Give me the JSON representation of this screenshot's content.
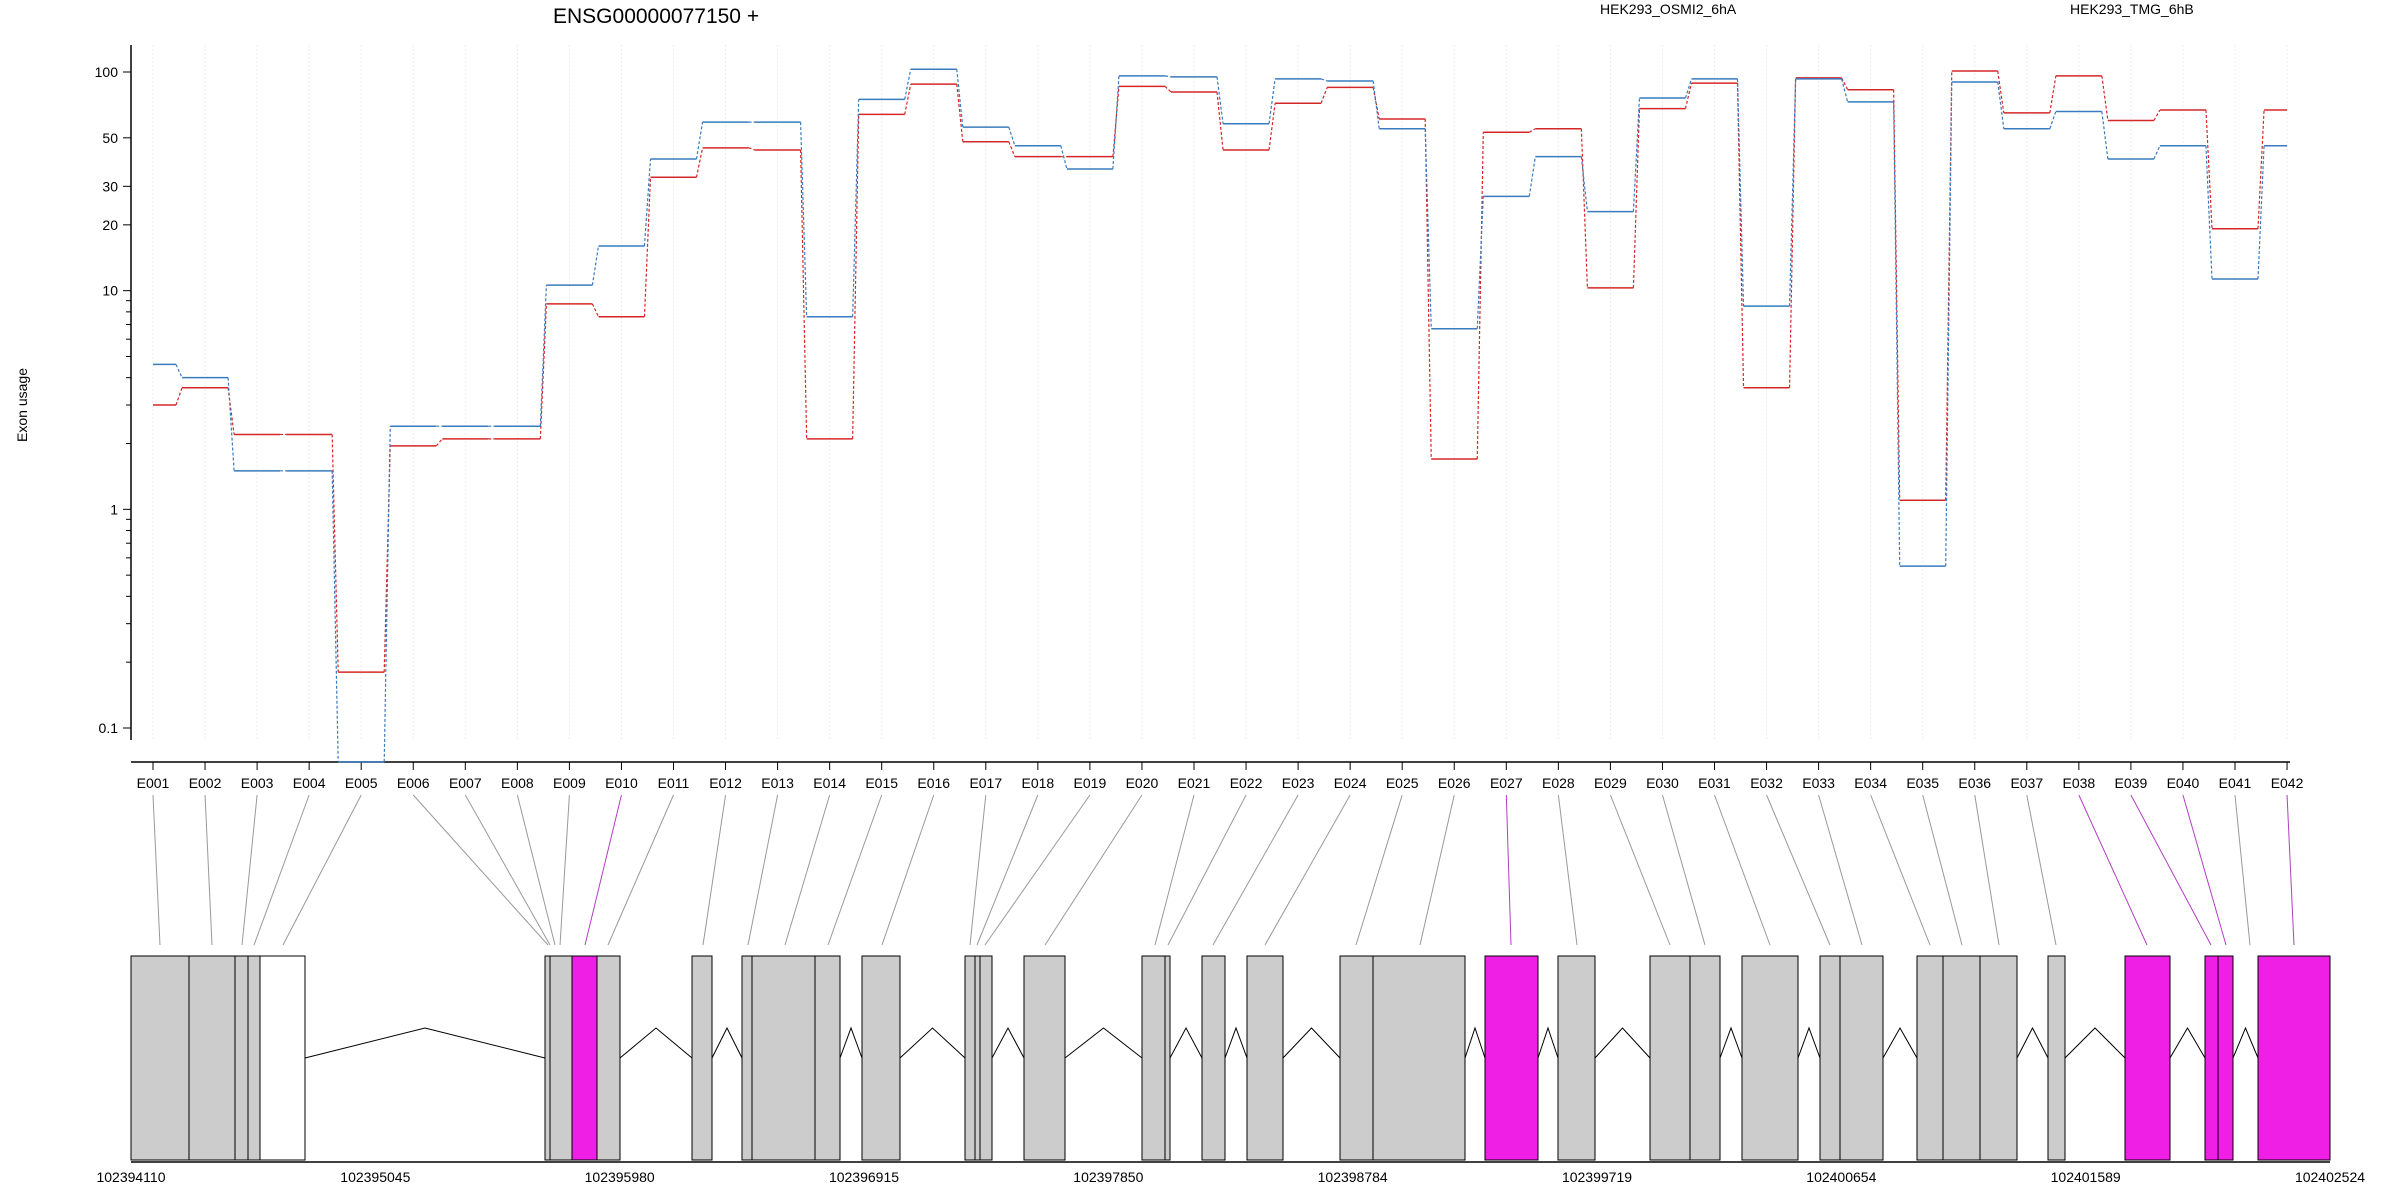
{
  "chart_data": {
    "type": "line",
    "title": "ENSG00000077150 +",
    "ylabel": "Exon usage",
    "xlabel": "",
    "yscale": "log",
    "ylim": [
      0.075,
      150
    ],
    "yticks": [
      0.1,
      1,
      10,
      20,
      30,
      50,
      100
    ],
    "ytick_labels": [
      "0.1",
      "1",
      "10",
      "20",
      "30",
      "50",
      "100"
    ],
    "grid": "vertical",
    "legend_position": "top",
    "categories": [
      "E001",
      "E002",
      "E003",
      "E004",
      "E005",
      "E006",
      "E007",
      "E008",
      "E009",
      "E010",
      "E011",
      "E012",
      "E013",
      "E014",
      "E015",
      "E016",
      "E017",
      "E018",
      "E019",
      "E020",
      "E021",
      "E022",
      "E023",
      "E024",
      "E025",
      "E026",
      "E027",
      "E028",
      "E029",
      "E030",
      "E031",
      "E032",
      "E033",
      "E034",
      "E035",
      "E036",
      "E037",
      "E038",
      "E039",
      "E040",
      "E041",
      "E042"
    ],
    "series": [
      {
        "name": "HEK293_OSMI2_6hA",
        "color": "#d62728",
        "values": [
          3.0,
          3.6,
          2.2,
          2.2,
          0.18,
          1.95,
          2.1,
          2.1,
          8.7,
          7.6,
          33,
          45,
          44,
          2.1,
          64,
          88,
          48,
          41,
          41,
          86,
          81,
          44,
          72,
          85,
          61,
          1.7,
          53,
          55,
          10.3,
          68,
          89,
          3.6,
          94,
          83,
          1.1,
          101,
          65,
          96,
          60,
          67,
          19.2,
          67
        ]
      },
      {
        "name": "HEK293_TMG_6hB",
        "color": "#3a7bbf",
        "values": [
          4.6,
          4.0,
          1.5,
          1.5,
          0.07,
          2.4,
          2.4,
          2.4,
          10.6,
          16,
          40,
          59,
          59,
          7.6,
          75,
          103,
          56,
          46,
          36,
          96,
          95,
          58,
          93,
          91,
          55,
          6.7,
          27,
          41,
          23,
          76,
          93,
          8.5,
          93,
          73,
          0.55,
          90,
          55,
          66,
          40,
          46,
          11.3,
          46
        ]
      }
    ],
    "gene_model": {
      "coordinates": [
        "102394110",
        "102395045",
        "102395980",
        "102396915",
        "102397850",
        "102398784",
        "102399719",
        "102400654",
        "102401589",
        "102402524"
      ],
      "highlight_color": "#f01fe6",
      "exon_color": "#cccccc"
    }
  }
}
